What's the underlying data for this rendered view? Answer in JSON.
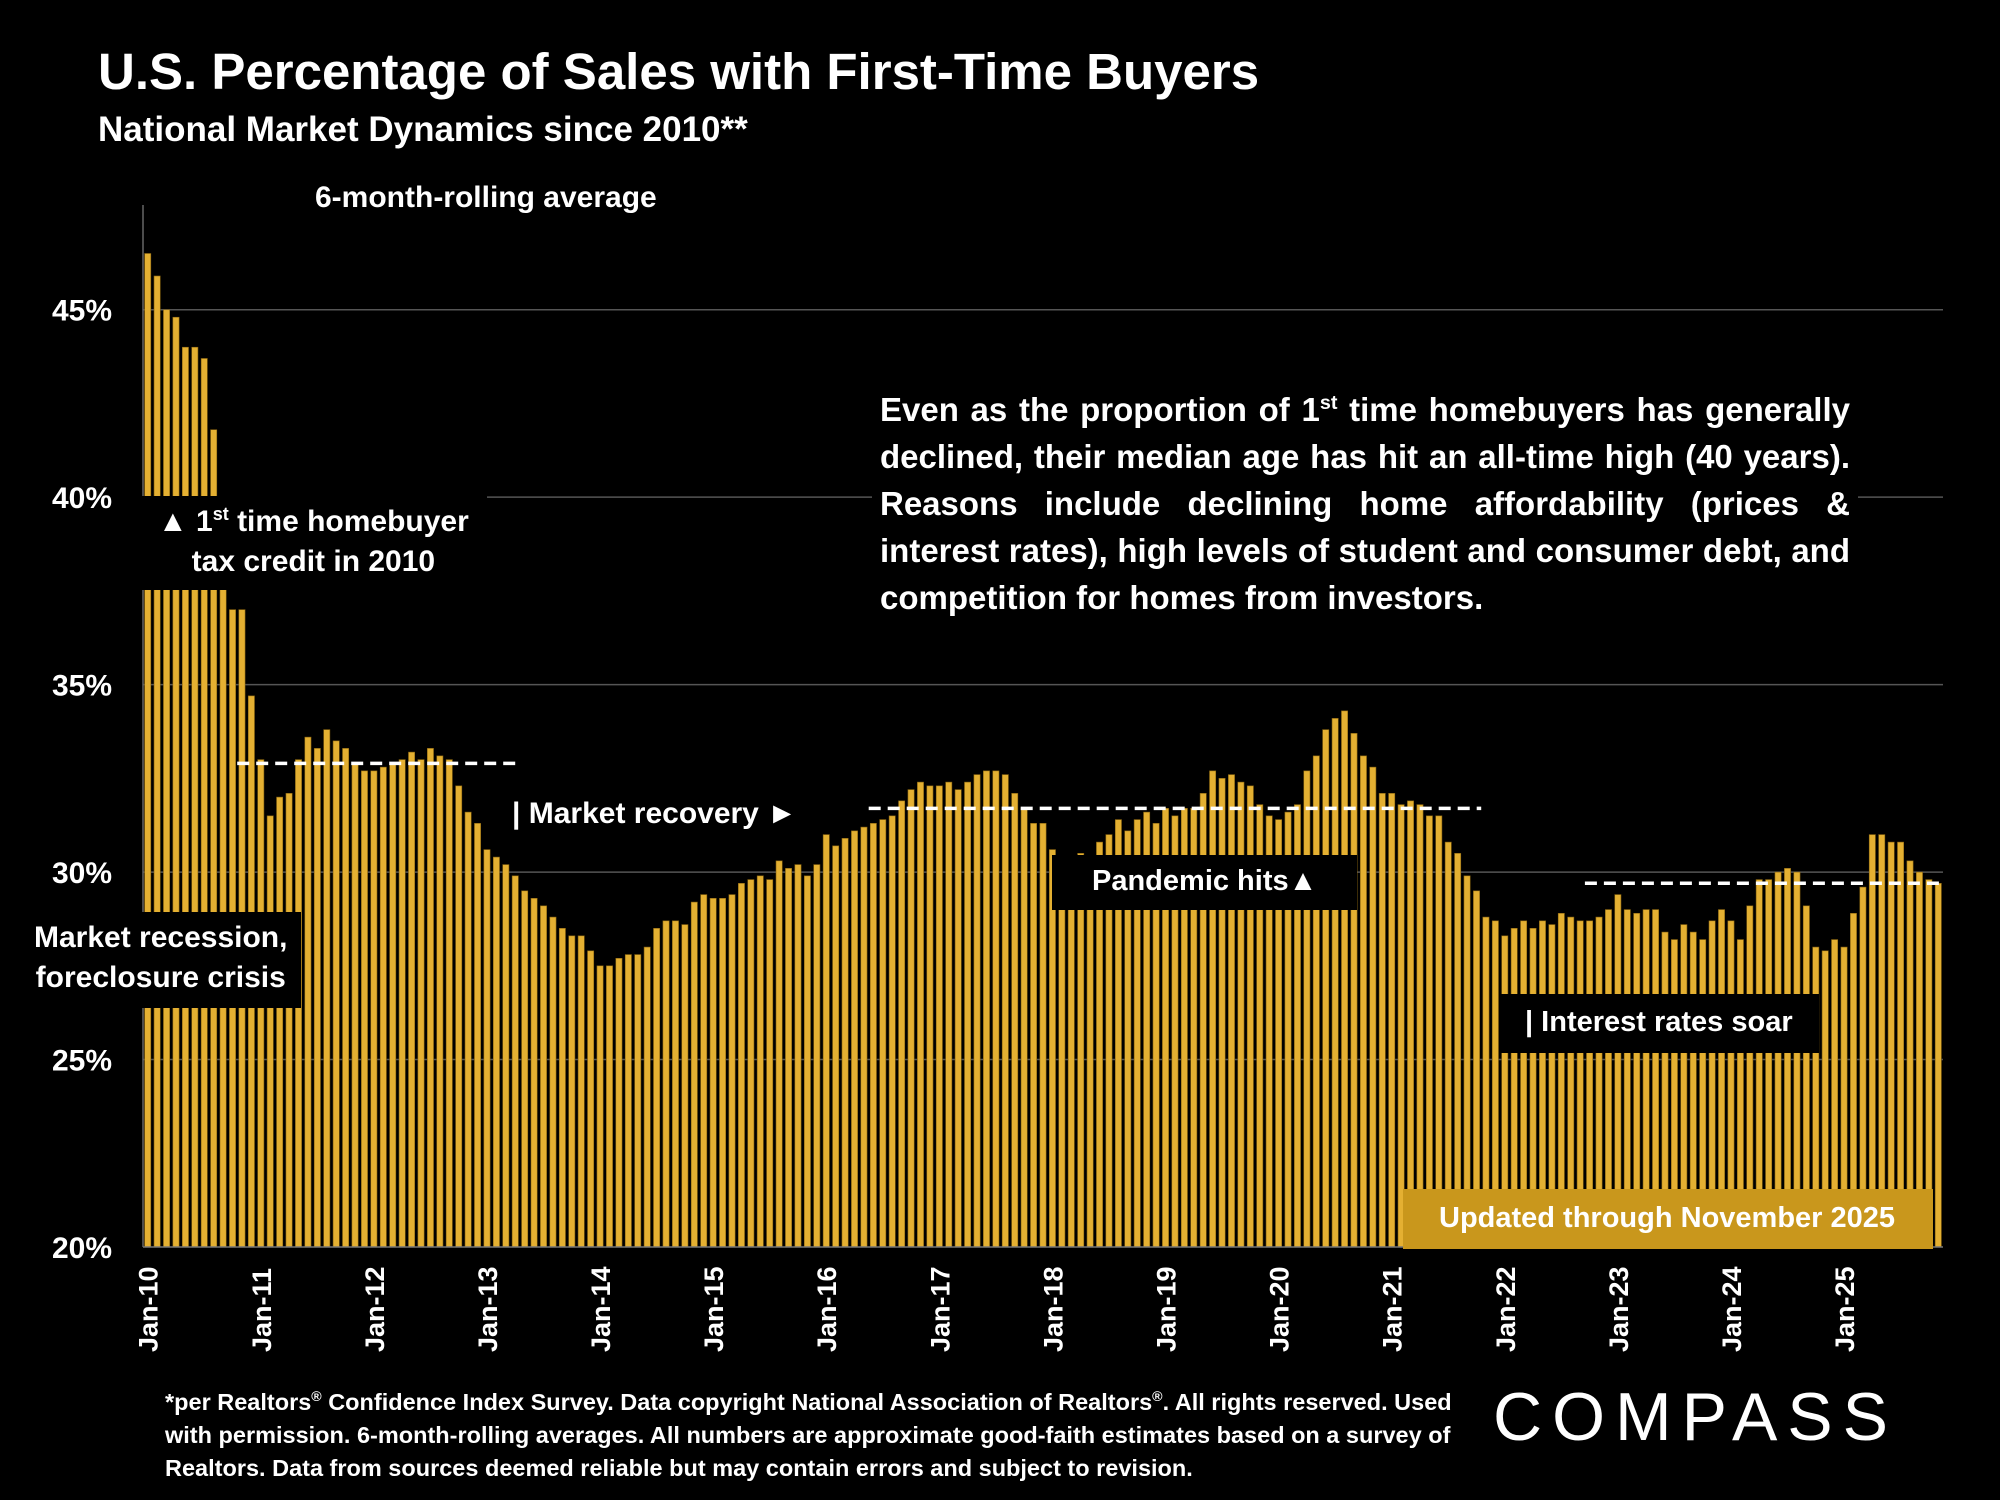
{
  "title": "U.S. Percentage of Sales with First-Time Buyers",
  "subtitle": "National Market Dynamics since 2010**",
  "chart_label": "6-month-rolling average",
  "annotations": {
    "tax_credit_line1_pre": "▲ 1",
    "tax_credit_sup": "st",
    "tax_credit_line1_post": " time homebuyer",
    "tax_credit_line2": "tax credit in 2010",
    "recession_line1": "Market recession,",
    "recession_line2": "foreclosure crisis",
    "market_recovery": "| Market recovery ►",
    "pandemic": "Pandemic hits▲",
    "interest_rates": "| Interest rates soar",
    "updated": "Updated through November 2025"
  },
  "callout": {
    "pre": "Even as the proportion of 1",
    "sup": "st",
    "post": " time homebuyers has generally declined, their median age has hit an all-time high (40 years). Reasons include declining home affordability (prices & interest rates), high levels of student and consumer debt, and competition for homes from investors."
  },
  "footer": {
    "line1_a": "*per Realtors",
    "line1_b": " Confidence Index Survey. Data copyright National Association of Realtors",
    "line1_c": ". All rights reserved.",
    "reg": "®",
    "rest": "Used with permission. 6-month-rolling averages. All numbers are approximate good-faith estimates based on a survey of Realtors. Data from sources deemed reliable but may contain errors and subject to revision."
  },
  "logo": "COMPASS",
  "colors": {
    "bar": "#e4b032",
    "bar_edge": "#8a6510",
    "background": "#000000",
    "updated_box": "#c9971c"
  },
  "chart_data": {
    "type": "bar",
    "title": "U.S. Percentage of Sales with First-Time Buyers",
    "ylabel": "",
    "ylim": [
      20,
      47.5
    ],
    "yticks": [
      20,
      25,
      30,
      35,
      40,
      45
    ],
    "ytick_labels": [
      "20%",
      "25%",
      "30%",
      "35%",
      "40%",
      "45%"
    ],
    "xtick_labels": [
      "Jan-10",
      "Jan-11",
      "Jan-12",
      "Jan-13",
      "Jan-14",
      "Jan-15",
      "Jan-16",
      "Jan-17",
      "Jan-18",
      "Jan-19",
      "Jan-20",
      "Jan-21",
      "Jan-22",
      "Jan-23",
      "Jan-24",
      "Jan-25"
    ],
    "start": "Jan-10",
    "end": "Nov-25",
    "grid": true,
    "series": [
      {
        "name": "6-month-rolling average (%)",
        "values": [
          46.5,
          45.9,
          45.0,
          44.8,
          44.0,
          44.0,
          43.7,
          41.8,
          39.9,
          37.0,
          37.0,
          34.7,
          33.0,
          31.5,
          32.0,
          32.1,
          33.0,
          33.6,
          33.3,
          33.8,
          33.5,
          33.3,
          32.9,
          32.7,
          32.7,
          32.8,
          32.9,
          33.0,
          33.2,
          33.0,
          33.3,
          33.1,
          33.0,
          32.3,
          31.6,
          31.3,
          30.6,
          30.4,
          30.2,
          29.9,
          29.5,
          29.3,
          29.1,
          28.8,
          28.5,
          28.3,
          28.3,
          27.9,
          27.5,
          27.5,
          27.7,
          27.8,
          27.8,
          28.0,
          28.5,
          28.7,
          28.7,
          28.6,
          29.2,
          29.4,
          29.3,
          29.3,
          29.4,
          29.7,
          29.8,
          29.9,
          29.8,
          30.3,
          30.1,
          30.2,
          29.9,
          30.2,
          31.0,
          30.7,
          30.9,
          31.1,
          31.2,
          31.3,
          31.4,
          31.5,
          31.9,
          32.2,
          32.4,
          32.3,
          32.3,
          32.4,
          32.2,
          32.4,
          32.6,
          32.7,
          32.7,
          32.6,
          32.1,
          31.7,
          31.3,
          31.3,
          30.6,
          30.1,
          30.3,
          30.5,
          30.3,
          30.8,
          31.0,
          31.4,
          31.1,
          31.4,
          31.6,
          31.3,
          31.7,
          31.5,
          31.7,
          31.7,
          32.1,
          32.7,
          32.5,
          32.6,
          32.4,
          32.3,
          31.8,
          31.5,
          31.4,
          31.6,
          31.8,
          32.7,
          33.1,
          33.8,
          34.1,
          34.3,
          33.7,
          33.1,
          32.8,
          32.1,
          32.1,
          31.8,
          31.9,
          31.8,
          31.5,
          31.5,
          30.8,
          30.5,
          29.9,
          29.5,
          28.8,
          28.7,
          28.3,
          28.5,
          28.7,
          28.5,
          28.7,
          28.6,
          28.9,
          28.8,
          28.7,
          28.7,
          28.8,
          29.0,
          29.4,
          29.0,
          28.9,
          29.0,
          29.0,
          28.4,
          28.2,
          28.6,
          28.4,
          28.2,
          28.7,
          29.0,
          28.7,
          28.2,
          29.1,
          29.8,
          29.8,
          30.0,
          30.1,
          30.0,
          29.1,
          28.0,
          27.9,
          28.2,
          28.0,
          28.9,
          29.6,
          31.0,
          31.0,
          30.8,
          30.8,
          30.3,
          30.0,
          29.8,
          29.7
        ]
      }
    ],
    "reference_lines": [
      {
        "from": "Nov-10",
        "to": "Apr-13",
        "value": 32.9
      },
      {
        "from": "Jun-16",
        "to": "Oct-21",
        "value": 31.7
      },
      {
        "from": "Oct-22",
        "to": "Nov-25",
        "value": 29.7
      }
    ]
  }
}
